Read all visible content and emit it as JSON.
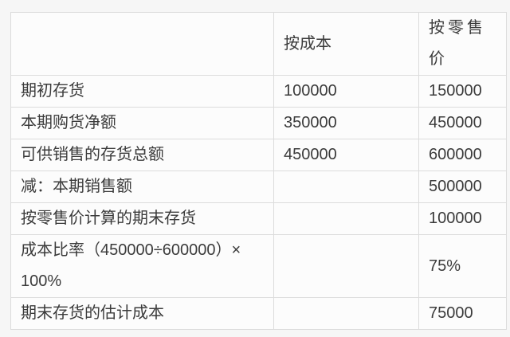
{
  "colors": {
    "page_background": "#f6f6f6",
    "cell_background": "#fcfcfc",
    "border": "#dcdcdc",
    "text": "#3b3b3b"
  },
  "table": {
    "description": "retail-method inventory cost estimation table",
    "columns": [
      {
        "key": "label",
        "header": ""
      },
      {
        "key": "cost",
        "header": "按成本"
      },
      {
        "key": "retail",
        "header": "按零售价"
      }
    ],
    "rows": [
      {
        "label": "期初存货",
        "cost": "100000",
        "retail": "150000"
      },
      {
        "label": "本期购货净额",
        "cost": "350000",
        "retail": "450000"
      },
      {
        "label": "可供销售的存货总额",
        "cost": "450000",
        "retail": "600000"
      },
      {
        "label": "减：本期销售额",
        "cost": "",
        "retail": "500000"
      },
      {
        "label": "按零售价计算的期末存货",
        "cost": "",
        "retail": "100000"
      },
      {
        "label": "成本比率（450000÷600000）× 100%",
        "cost": "",
        "retail": "75%"
      },
      {
        "label": "期末存货的估计成本",
        "cost": "",
        "retail": "75000"
      }
    ]
  }
}
